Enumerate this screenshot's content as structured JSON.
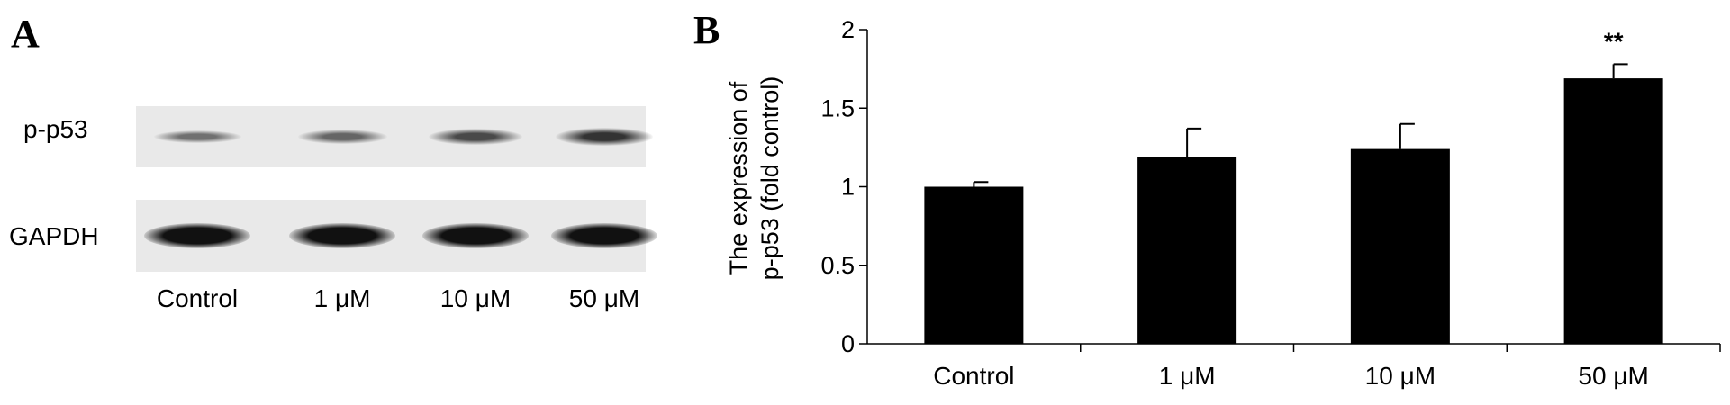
{
  "panel_a": {
    "letter": "A",
    "row_labels": [
      "p-p53",
      "GAPDH"
    ],
    "lane_labels": [
      "Control",
      "1 μM",
      "10 μM",
      "50 μM"
    ]
  },
  "panel_b": {
    "letter": "B"
  },
  "chart_data": {
    "type": "bar",
    "categories": [
      "Control",
      "1 μM",
      "10 μM",
      "50 μM"
    ],
    "values": [
      1.0,
      1.19,
      1.24,
      1.69
    ],
    "errors": [
      0.03,
      0.18,
      0.16,
      0.09
    ],
    "annotations": [
      "",
      "",
      "",
      "**"
    ],
    "ylabel_lines": [
      "The expression of",
      "p-p53 (fold control)"
    ],
    "ylim": [
      0,
      2
    ],
    "yticks": [
      0,
      0.5,
      1,
      1.5,
      2
    ],
    "ytick_labels": [
      "0",
      "0.5",
      "1",
      "1.5",
      "2"
    ],
    "bar_color": "#000000",
    "grid": false
  },
  "blot": {
    "strip_color": "#e9e9e9",
    "p_p53_intensity": [
      0.35,
      0.45,
      0.7,
      0.9
    ],
    "gapdh_intensity": [
      1.0,
      1.0,
      1.0,
      1.0
    ]
  }
}
